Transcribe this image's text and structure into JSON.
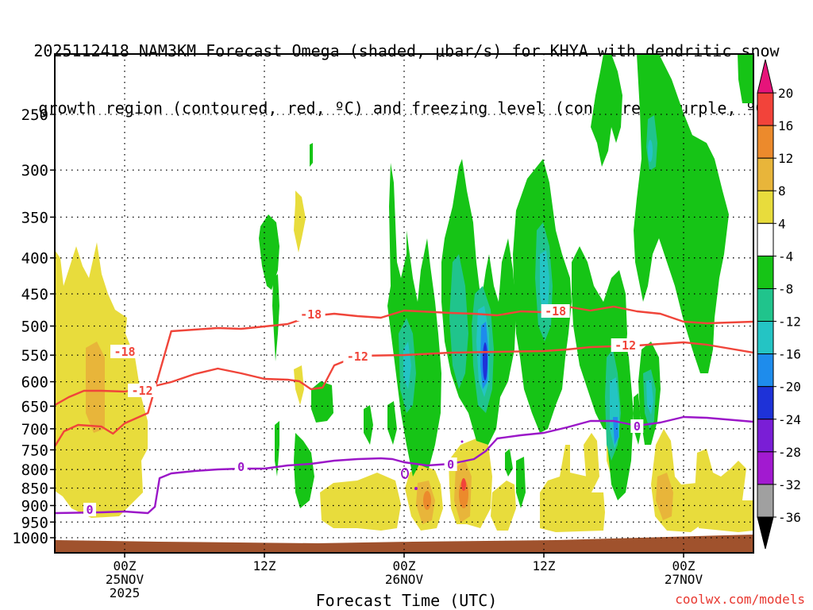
{
  "title": {
    "line1": "2025112418 NAM3KM Forecast Omega (shaded, μbar/s) for KHYA with dendritic snow",
    "line2": "growth region (contoured, red, ºC) and freezing level (contoured, purple, ºC)"
  },
  "credit": "coolwx.com/models",
  "colors": {
    "dsgz": "#f0453a",
    "freezing": "#9b17c8",
    "ground": "#a0522d",
    "grid": "#000000"
  },
  "chart_data": {
    "type": "heatmap",
    "title": "2025112418 NAM3KM Forecast Omega (shaded, μbar/s) for KHYA with dendritic snow growth region (contoured, red, ºC) and freezing level (contoured, purple, ºC)",
    "xlabel": "Forecast Time (UTC)",
    "ylabel": "",
    "x_ticks": [
      {
        "hour": 6,
        "label": "00Z",
        "date": "25NOV",
        "year": "2025"
      },
      {
        "hour": 18,
        "label": "12Z",
        "date": "",
        "year": ""
      },
      {
        "hour": 30,
        "label": "00Z",
        "date": "26NOV",
        "year": ""
      },
      {
        "hour": 42,
        "label": "12Z",
        "date": "",
        "year": ""
      },
      {
        "hour": 54,
        "label": "00Z",
        "date": "27NOV",
        "year": ""
      }
    ],
    "x_range_hours": [
      0,
      60
    ],
    "y_ticks": [
      "250",
      "300",
      "350",
      "400",
      "450",
      "500",
      "550",
      "600",
      "650",
      "700",
      "750",
      "800",
      "850",
      "900",
      "950",
      "1000"
    ],
    "y_unit": "hPa",
    "colorbar": {
      "label": "Omega (μbar/s)",
      "ticks": [
        "20",
        "16",
        "12",
        "8",
        "4",
        "-4",
        "-8",
        "-12",
        "-16",
        "-20",
        "-24",
        "-28",
        "-32",
        "-36"
      ],
      "bands": [
        {
          "from": 16,
          "to": 20,
          "color": "#f2433a"
        },
        {
          "from": 12,
          "to": 16,
          "color": "#ec8a2c"
        },
        {
          "from": 8,
          "to": 12,
          "color": "#e8b53a"
        },
        {
          "from": 4,
          "to": 8,
          "color": "#e8dc3c"
        },
        {
          "from": -4,
          "to": 4,
          "color": "#ffffff"
        },
        {
          "from": -8,
          "to": -4,
          "color": "#16c416"
        },
        {
          "from": -12,
          "to": -8,
          "color": "#20c48c"
        },
        {
          "from": -16,
          "to": -12,
          "color": "#24c4c4"
        },
        {
          "from": -20,
          "to": -16,
          "color": "#1e8cec"
        },
        {
          "from": -24,
          "to": -20,
          "color": "#1e32d8"
        },
        {
          "from": -28,
          "to": -24,
          "color": "#7a1ed6"
        },
        {
          "from": -32,
          "to": -28,
          "color": "#a21ad0"
        },
        {
          "from": -36,
          "to": -32,
          "color": "#a0a0a0"
        }
      ],
      "over_color": "#e6147a",
      "under_color": "#000000"
    },
    "contours": [
      {
        "name": "dendritic -18C",
        "label": "-18",
        "color": "#f0453a",
        "points": [
          [
            0,
            562
          ],
          [
            0.8,
            543
          ],
          [
            2,
            535
          ],
          [
            4,
            537
          ],
          [
            5,
            546
          ],
          [
            6,
            533
          ],
          [
            8,
            520
          ],
          [
            10,
            417
          ],
          [
            12,
            415
          ],
          [
            14,
            413
          ],
          [
            16,
            414
          ],
          [
            18,
            411
          ],
          [
            20,
            408
          ],
          [
            22,
            398
          ],
          [
            24,
            395
          ],
          [
            26,
            398
          ],
          [
            28,
            400
          ],
          [
            30,
            391
          ],
          [
            34,
            394
          ],
          [
            36,
            395
          ],
          [
            38,
            397
          ],
          [
            40,
            392
          ],
          [
            42,
            393
          ],
          [
            44,
            386
          ],
          [
            46,
            391
          ],
          [
            48,
            386
          ],
          [
            50,
            392
          ],
          [
            52,
            395
          ],
          [
            54,
            405
          ],
          [
            56,
            407
          ],
          [
            60,
            405
          ]
        ],
        "label_at": [
          [
            6,
            443
          ],
          [
            22,
            396
          ],
          [
            43,
            392
          ]
        ]
      },
      {
        "name": "dendritic -12C",
        "label": "-12",
        "color": "#f0453a",
        "points": [
          [
            0,
            510
          ],
          [
            1.2,
            500
          ],
          [
            2.5,
            492
          ],
          [
            4,
            492
          ],
          [
            6,
            493
          ],
          [
            8,
            488
          ],
          [
            10,
            481
          ],
          [
            12,
            471
          ],
          [
            14,
            464
          ],
          [
            16,
            470
          ],
          [
            18,
            477
          ],
          [
            20,
            478
          ],
          [
            21,
            480
          ],
          [
            22,
            490
          ],
          [
            23,
            488
          ],
          [
            24,
            460
          ],
          [
            26,
            448
          ],
          [
            30,
            447
          ],
          [
            34,
            444
          ],
          [
            38,
            443
          ],
          [
            42,
            442
          ],
          [
            44,
            440
          ],
          [
            46,
            437
          ],
          [
            50,
            435
          ],
          [
            54,
            431
          ],
          [
            56,
            434
          ],
          [
            60,
            444
          ]
        ],
        "label_at": [
          [
            7.5,
            492
          ],
          [
            26,
            449
          ],
          [
            49,
            435
          ]
        ]
      },
      {
        "name": "freezing level 0C",
        "label": "0",
        "color": "#9b17c8",
        "points": [
          [
            0,
            646
          ],
          [
            4,
            645
          ],
          [
            6,
            644
          ],
          [
            8,
            646
          ],
          [
            8.6,
            638
          ],
          [
            9,
            602
          ],
          [
            10,
            596
          ],
          [
            12,
            593
          ],
          [
            14,
            591
          ],
          [
            16,
            590
          ],
          [
            18,
            590
          ],
          [
            20,
            586
          ],
          [
            22,
            584
          ],
          [
            24,
            580
          ],
          [
            26,
            578
          ],
          [
            28,
            577
          ],
          [
            29,
            578
          ],
          [
            30,
            582
          ],
          [
            31,
            584
          ],
          [
            32,
            586
          ],
          [
            34,
            584
          ],
          [
            36,
            578
          ],
          [
            37,
            568
          ],
          [
            38,
            552
          ],
          [
            40,
            548
          ],
          [
            42,
            545
          ],
          [
            44,
            538
          ],
          [
            46,
            530
          ],
          [
            48,
            530
          ],
          [
            50,
            536
          ],
          [
            52,
            532
          ],
          [
            54,
            525
          ],
          [
            56,
            526
          ],
          [
            60,
            531
          ]
        ],
        "label_at": [
          [
            3,
            642
          ],
          [
            16,
            588
          ],
          [
            34,
            585
          ],
          [
            50,
            537
          ]
        ]
      }
    ],
    "omega_regions_note": "Shaded: positive (yellow/orange) low-level ascent regions at start and 00Z-06Z 26NOV; negative (green/cyan/blue) deep columns 00Z-12Z 26NOV and 18Z-24Z 26NOV",
    "ground_level_hPa": "1000"
  }
}
